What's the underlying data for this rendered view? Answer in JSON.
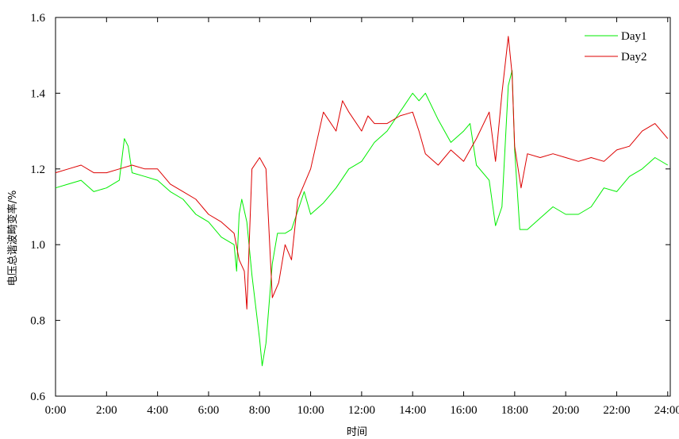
{
  "chart_data": {
    "type": "line",
    "title": "",
    "xlabel": "时间",
    "ylabel": "电压总谐波畸变率/%",
    "xlim": [
      0,
      24.1
    ],
    "ylim": [
      0.6,
      1.6
    ],
    "x_ticks": [
      "0:00",
      "2:00",
      "4:00",
      "6:00",
      "8:00",
      "10:00",
      "12:00",
      "14:00",
      "16:00",
      "18:00",
      "20:00",
      "22:00",
      "24:00"
    ],
    "y_ticks": [
      "0.6",
      "0.8",
      "1.0",
      "1.2",
      "1.4",
      "1.6"
    ],
    "grid": false,
    "legend_position": "top-right",
    "series": [
      {
        "name": "Day1",
        "color": "#00ee00",
        "x": [
          0,
          0.5,
          1,
          1.5,
          2,
          2.5,
          2.7,
          2.85,
          3,
          3.5,
          4,
          4.5,
          5,
          5.5,
          6,
          6.5,
          7,
          7.1,
          7.2,
          7.3,
          7.5,
          7.7,
          8,
          8.1,
          8.25,
          8.5,
          8.7,
          9,
          9.25,
          9.5,
          9.75,
          10,
          10.5,
          11,
          11.5,
          12,
          12.5,
          13,
          13.5,
          14,
          14.25,
          14.5,
          15,
          15.5,
          16,
          16.25,
          16.5,
          17,
          17.25,
          17.5,
          17.75,
          17.9,
          18,
          18.2,
          18.5,
          19,
          19.5,
          20,
          20.5,
          21,
          21.5,
          22,
          22.5,
          23,
          23.5,
          24
        ],
        "values": [
          1.15,
          1.16,
          1.17,
          1.14,
          1.15,
          1.17,
          1.28,
          1.26,
          1.19,
          1.18,
          1.17,
          1.14,
          1.12,
          1.08,
          1.06,
          1.02,
          1.0,
          0.93,
          1.08,
          1.12,
          1.06,
          0.92,
          0.75,
          0.68,
          0.74,
          0.95,
          1.03,
          1.03,
          1.04,
          1.09,
          1.14,
          1.08,
          1.11,
          1.15,
          1.2,
          1.22,
          1.27,
          1.3,
          1.35,
          1.4,
          1.38,
          1.4,
          1.33,
          1.27,
          1.3,
          1.32,
          1.21,
          1.17,
          1.05,
          1.1,
          1.42,
          1.46,
          1.25,
          1.04,
          1.04,
          1.07,
          1.1,
          1.08,
          1.08,
          1.1,
          1.15,
          1.14,
          1.18,
          1.2,
          1.23,
          1.21
        ]
      },
      {
        "name": "Day2",
        "color": "#dd0000",
        "x": [
          0,
          0.5,
          1,
          1.5,
          2,
          2.5,
          3,
          3.5,
          4,
          4.5,
          5,
          5.5,
          6,
          6.5,
          7,
          7.2,
          7.4,
          7.5,
          7.7,
          8,
          8.25,
          8.5,
          8.75,
          9,
          9.25,
          9.5,
          9.75,
          10,
          10.5,
          11,
          11.25,
          11.5,
          12,
          12.25,
          12.5,
          13,
          13.5,
          14,
          14.25,
          14.5,
          15,
          15.5,
          16,
          16.5,
          17,
          17.25,
          17.5,
          17.75,
          17.9,
          18,
          18.25,
          18.5,
          19,
          19.5,
          20,
          20.5,
          21,
          21.5,
          22,
          22.5,
          23,
          23.5,
          24
        ],
        "values": [
          1.19,
          1.2,
          1.21,
          1.19,
          1.19,
          1.2,
          1.21,
          1.2,
          1.2,
          1.16,
          1.14,
          1.12,
          1.08,
          1.06,
          1.03,
          0.96,
          0.93,
          0.83,
          1.2,
          1.23,
          1.2,
          0.86,
          0.9,
          1.0,
          0.96,
          1.12,
          1.16,
          1.2,
          1.35,
          1.3,
          1.38,
          1.35,
          1.3,
          1.34,
          1.32,
          1.32,
          1.34,
          1.35,
          1.3,
          1.24,
          1.21,
          1.25,
          1.22,
          1.28,
          1.35,
          1.22,
          1.4,
          1.55,
          1.45,
          1.26,
          1.15,
          1.24,
          1.23,
          1.24,
          1.23,
          1.22,
          1.23,
          1.22,
          1.25,
          1.26,
          1.3,
          1.32,
          1.28
        ]
      }
    ]
  }
}
